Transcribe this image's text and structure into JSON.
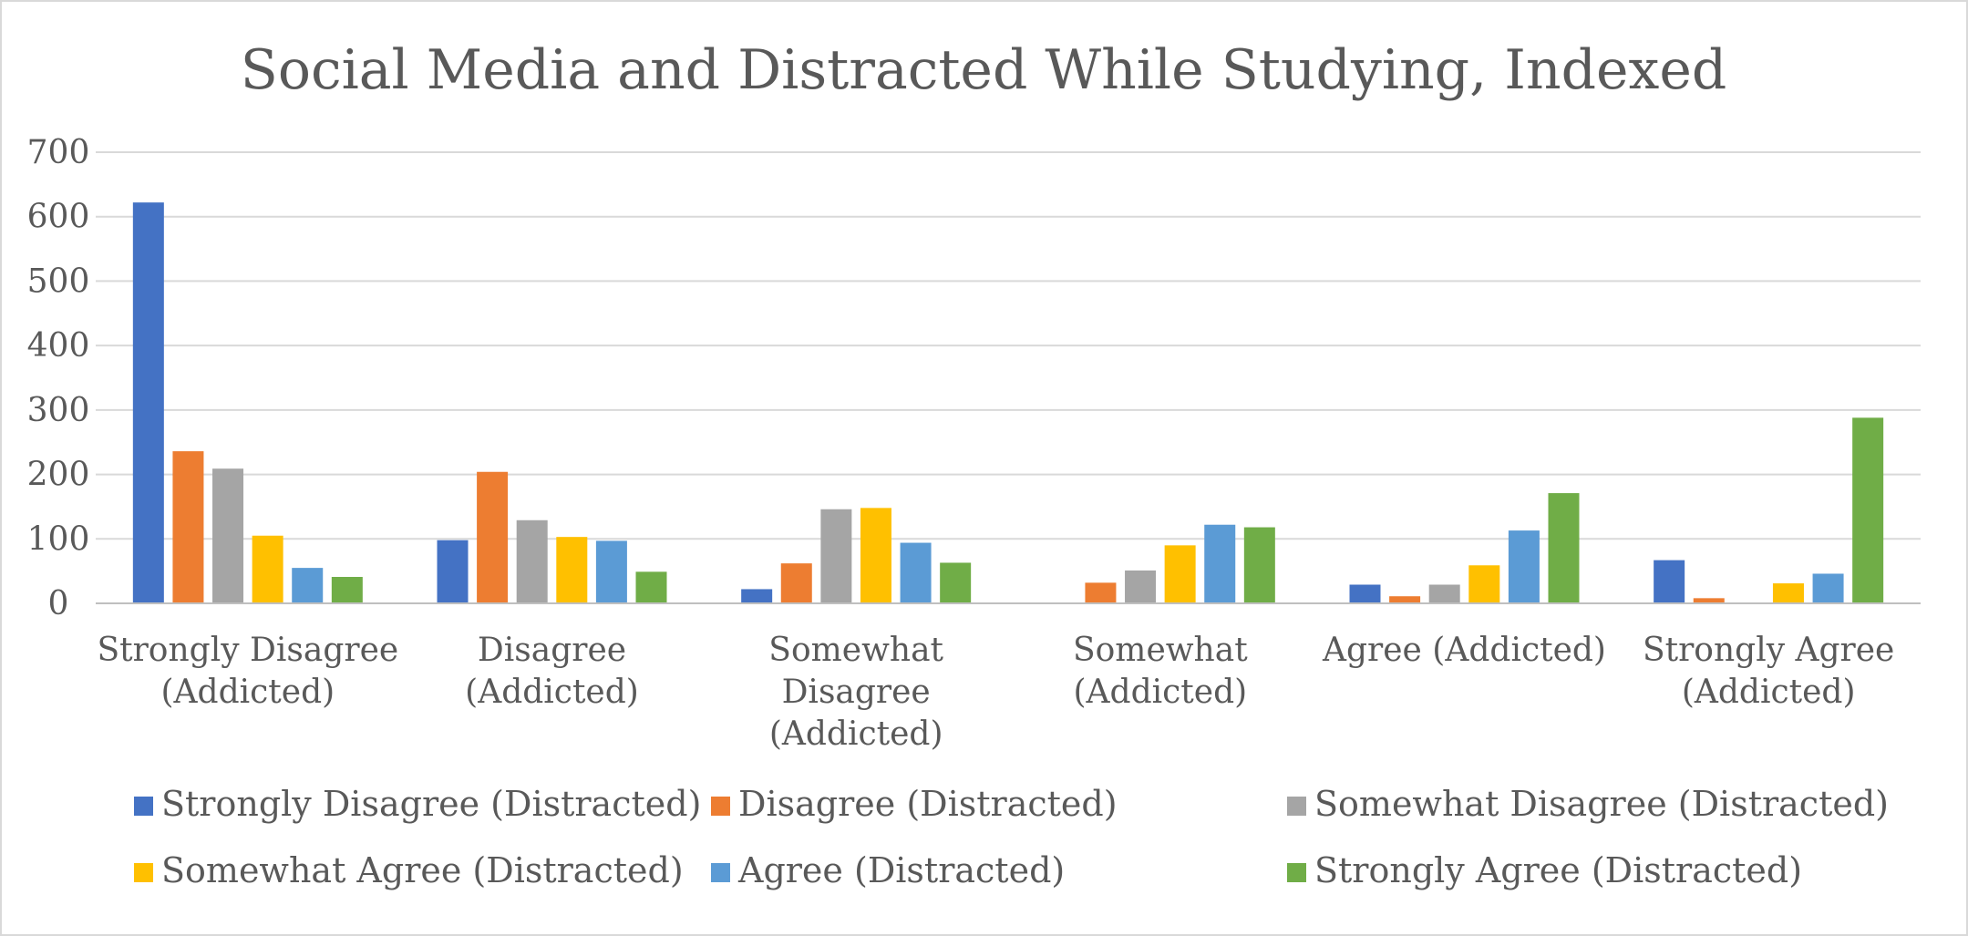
{
  "chart_data": {
    "type": "bar",
    "title": "Social Media and Distracted While Studying, Indexed",
    "xlabel": "",
    "ylabel": "",
    "ylim": [
      0,
      700
    ],
    "yticks": [
      0,
      100,
      200,
      300,
      400,
      500,
      600,
      700
    ],
    "grid": true,
    "legend_position": "bottom",
    "categories": [
      [
        "Strongly Disagree",
        "(Addicted)"
      ],
      [
        "Disagree",
        "(Addicted)"
      ],
      [
        "Somewhat",
        "Disagree",
        "(Addicted)"
      ],
      [
        "Somewhat",
        "(Addicted)"
      ],
      [
        "Agree (Addicted)"
      ],
      [
        "Strongly Agree",
        "(Addicted)"
      ]
    ],
    "series": [
      {
        "name": "Strongly Disagree (Distracted)",
        "color": "#4472c4",
        "values": [
          622,
          98,
          22,
          0,
          29,
          67
        ]
      },
      {
        "name": "Disagree (Distracted)",
        "color": "#ed7d31",
        "values": [
          236,
          204,
          62,
          32,
          11,
          8
        ]
      },
      {
        "name": "Somewhat Disagree (Distracted)",
        "color": "#a5a5a5",
        "values": [
          209,
          129,
          146,
          51,
          29,
          0
        ]
      },
      {
        "name": "Somewhat Agree (Distracted)",
        "color": "#ffc000",
        "values": [
          105,
          103,
          148,
          90,
          59,
          31
        ]
      },
      {
        "name": "Agree (Distracted)",
        "color": "#5b9bd5",
        "values": [
          55,
          97,
          94,
          122,
          113,
          46
        ]
      },
      {
        "name": "Strongly Agree (Distracted)",
        "color": "#70ad47",
        "values": [
          41,
          49,
          63,
          118,
          171,
          288
        ]
      }
    ]
  }
}
